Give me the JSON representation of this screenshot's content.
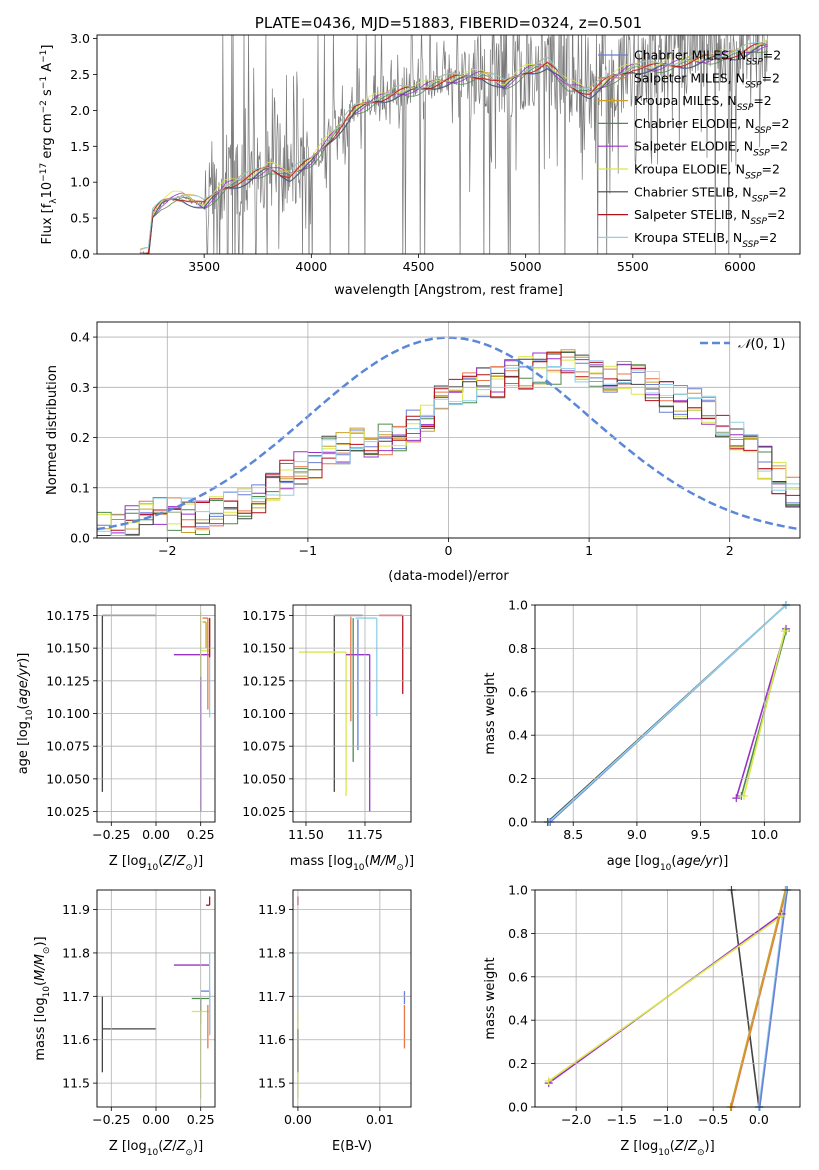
{
  "figure_title": "PLATE=0436, MJD=51883, FIBERID=0324, z=0.501",
  "palette": {
    "Chabrier MILES": "#6a7fd8",
    "Salpeter MILES": "#e8744a",
    "Kroupa MILES": "#c9a227",
    "Chabrier ELODIE": "#4f8a4f",
    "Salpeter ELODIE": "#9b30c9",
    "Kroupa ELODIE": "#d9e84a",
    "Chabrier STELIB": "#444444",
    "Salpeter STELIB": "#b3111b",
    "Kroupa STELIB": "#8fd0e8",
    "data": "#7a7a7a",
    "normal": "#5b87d9"
  },
  "chart_data": [
    {
      "id": "spectrum",
      "type": "line",
      "title": "PLATE=0436, MJD=51883, FIBERID=0324, z=0.501",
      "xlabel": "wavelength [Angstrom, rest frame]",
      "ylabel": "Flux [f_λ 10^-17 erg cm^-2 s^-1 A^-1]",
      "xlim": [
        3000,
        6280
      ],
      "ylim": [
        0,
        3.05
      ],
      "xticks": [
        3500,
        4000,
        4500,
        5000,
        5500,
        6000
      ],
      "yticks": [
        0.0,
        0.5,
        1.0,
        1.5,
        2.0,
        2.5,
        3.0
      ],
      "legend_loc": "right",
      "legend": [
        "Chabrier MILES, N_SSP=2",
        "Salpeter MILES, N_SSP=2",
        "Kroupa MILES, N_SSP=2",
        "Chabrier ELODIE, N_SSP=2",
        "Salpeter ELODIE, N_SSP=2",
        "Kroupa ELODIE, N_SSP=2",
        "Chabrier STELIB, N_SSP=2",
        "Salpeter STELIB, N_SSP=2",
        "Kroupa STELIB, N_SSP=2"
      ],
      "continuum": {
        "x": [
          3200,
          3240,
          3260,
          3300,
          3350,
          3400,
          3450,
          3500,
          3600,
          3700,
          3800,
          3900,
          4000,
          4100,
          4200,
          4300,
          4400,
          4500,
          4600,
          4700,
          4800,
          4900,
          5000,
          5100,
          5200,
          5300,
          5400,
          5500,
          5600,
          5700,
          5800,
          5900,
          6000,
          6100,
          6130
        ],
        "y": [
          0.0,
          0.0,
          0.55,
          0.7,
          0.78,
          0.8,
          0.74,
          0.68,
          0.95,
          1.05,
          1.2,
          1.1,
          1.3,
          1.65,
          2.0,
          2.15,
          2.25,
          2.3,
          2.4,
          2.45,
          2.5,
          2.35,
          2.55,
          2.65,
          2.35,
          2.25,
          2.45,
          2.6,
          2.6,
          2.65,
          2.7,
          2.75,
          2.8,
          2.9,
          2.9
        ]
      }
    },
    {
      "id": "residuals",
      "type": "histogram",
      "xlabel": "(data-model)/error",
      "ylabel": "Normed distribution",
      "xlim": [
        -2.5,
        2.5
      ],
      "ylim": [
        0,
        0.43
      ],
      "xticks": [
        -2,
        -1,
        0,
        1,
        2
      ],
      "yticks": [
        0.0,
        0.1,
        0.2,
        0.3,
        0.4
      ],
      "legend": [
        "N(0,1)"
      ],
      "legend_loc": "upper right",
      "bin_edges_start": -2.5,
      "bin_width": 0.1,
      "envelope": [
        0.02,
        0.025,
        0.03,
        0.04,
        0.05,
        0.05,
        0.045,
        0.04,
        0.05,
        0.06,
        0.07,
        0.08,
        0.1,
        0.12,
        0.14,
        0.15,
        0.17,
        0.18,
        0.19,
        0.19,
        0.2,
        0.2,
        0.22,
        0.24,
        0.27,
        0.29,
        0.3,
        0.31,
        0.31,
        0.33,
        0.33,
        0.34,
        0.34,
        0.35,
        0.34,
        0.33,
        0.32,
        0.32,
        0.31,
        0.3,
        0.28,
        0.27,
        0.27,
        0.25,
        0.22,
        0.2,
        0.18,
        0.15,
        0.12,
        0.09
      ]
    },
    {
      "id": "age-vs-Z",
      "type": "errorbar",
      "xlabel": "Z [log10(Z/Z⊙)]",
      "ylabel": "age [log10(age/yr)]",
      "xlim": [
        -0.33,
        0.33
      ],
      "ylim": [
        10.017,
        10.183
      ],
      "xticks": [
        -0.25,
        0.0,
        0.25
      ],
      "yticks": [
        10.025,
        10.05,
        10.075,
        10.1,
        10.125,
        10.15,
        10.175
      ],
      "points": [
        {
          "series": "Chabrier STELIB",
          "x": -0.3,
          "y": 10.175,
          "xerr": [
            0.0,
            0.3
          ],
          "yerr": [
            0.135,
            0.0
          ]
        },
        {
          "series": "Salpeter ELODIE",
          "x": 0.25,
          "y": 10.145,
          "xerr": [
            0.15,
            0.05
          ],
          "yerr": [
            0.12,
            0.0
          ]
        },
        {
          "series": "Kroupa ELODIE",
          "x": 0.25,
          "y": 10.148,
          "xerr": [
            0.0,
            0.05
          ],
          "yerr": [
            0.02,
            0.03
          ]
        },
        {
          "series": "Salpeter MILES",
          "x": 0.29,
          "y": 10.173,
          "xerr": [
            0.03,
            0.0
          ],
          "yerr": [
            0.07,
            0.0
          ]
        },
        {
          "series": "Kroupa STELIB",
          "x": 0.3,
          "y": 10.172,
          "xerr": [
            0.0,
            0.0
          ],
          "yerr": [
            0.075,
            0.0
          ]
        },
        {
          "series": "Salpeter STELIB",
          "x": 0.3,
          "y": 10.173,
          "xerr": [
            0.0,
            0.0
          ],
          "yerr": [
            0.03,
            0.0
          ]
        },
        {
          "series": "Kroupa MILES",
          "x": 0.28,
          "y": 10.17,
          "xerr": [
            0.02,
            0.0
          ],
          "yerr": [
            0.02,
            0.0
          ]
        }
      ]
    },
    {
      "id": "age-vs-mass",
      "type": "errorbar",
      "xlabel": "mass [log10(M/M⊙)]",
      "ylabel": "",
      "xlim": [
        11.445,
        11.945
      ],
      "ylim": [
        10.017,
        10.183
      ],
      "xticks": [
        11.5,
        11.75
      ],
      "yticks": [
        10.025,
        10.05,
        10.075,
        10.1,
        10.125,
        10.15,
        10.175
      ],
      "points": [
        {
          "series": "Chabrier STELIB",
          "x": 11.62,
          "y": 10.175,
          "xerr": [
            0.0,
            0.12
          ],
          "yerr": [
            0.135,
            0.0
          ]
        },
        {
          "series": "Kroupa ELODIE",
          "x": 11.67,
          "y": 10.147,
          "xerr": [
            0.2,
            0.0
          ],
          "yerr": [
            0.11,
            0.0
          ]
        },
        {
          "series": "Salpeter ELODIE",
          "x": 11.77,
          "y": 10.145,
          "xerr": [
            0.1,
            0.0
          ],
          "yerr": [
            0.12,
            0.0
          ]
        },
        {
          "series": "Kroupa STELIB",
          "x": 11.8,
          "y": 10.173,
          "xerr": [
            0.09,
            0.0
          ],
          "yerr": [
            0.075,
            0.0
          ]
        },
        {
          "series": "Salpeter STELIB",
          "x": 11.91,
          "y": 10.175,
          "xerr": [
            0.1,
            0.0
          ],
          "yerr": [
            0.06,
            0.0
          ]
        },
        {
          "series": "Chabrier ELODIE",
          "x": 11.7,
          "y": 10.173,
          "xerr": [
            0.0,
            0.0
          ],
          "yerr": [
            0.11,
            0.0
          ]
        },
        {
          "series": "Chabrier MILES",
          "x": 11.72,
          "y": 10.172,
          "xerr": [
            0.0,
            0.0
          ],
          "yerr": [
            0.1,
            0.0
          ]
        },
        {
          "series": "Salpeter MILES",
          "x": 11.69,
          "y": 10.174,
          "xerr": [
            0.0,
            0.0
          ],
          "yerr": [
            0.08,
            0.0
          ]
        }
      ]
    },
    {
      "id": "weight-vs-age",
      "type": "line",
      "xlabel": "age [log10(age/yr)]",
      "ylabel": "mass weight",
      "xlim": [
        8.2,
        10.28
      ],
      "ylim": [
        0,
        1.0
      ],
      "xticks": [
        8.5,
        9.0,
        9.5,
        10.0
      ],
      "yticks": [
        0.0,
        0.2,
        0.4,
        0.6,
        0.8,
        1.0
      ],
      "series": [
        {
          "series": "Chabrier STELIB",
          "x": [
            8.3,
            10.17
          ],
          "y": [
            0.0,
            1.0
          ]
        },
        {
          "series": "Chabrier MILES",
          "x": [
            8.32,
            10.17
          ],
          "y": [
            0.0,
            1.0
          ]
        },
        {
          "series": "Kroupa STELIB",
          "x": [
            8.31,
            10.17
          ],
          "y": [
            0.0,
            1.0
          ]
        },
        {
          "series": "Salpeter ELODIE",
          "x": [
            9.78,
            10.17
          ],
          "y": [
            0.11,
            0.89
          ]
        },
        {
          "series": "Chabrier ELODIE",
          "x": [
            9.82,
            10.17
          ],
          "y": [
            0.12,
            0.88
          ]
        },
        {
          "series": "Kroupa ELODIE",
          "x": [
            9.84,
            10.16
          ],
          "y": [
            0.12,
            0.88
          ]
        }
      ]
    },
    {
      "id": "mass-vs-Z",
      "type": "errorbar",
      "xlabel": "Z [log10(Z/Z⊙)]",
      "ylabel": "mass [log10(M/M⊙)]",
      "xlim": [
        -0.33,
        0.33
      ],
      "ylim": [
        11.445,
        11.945
      ],
      "xticks": [
        -0.25,
        0.0,
        0.25
      ],
      "yticks": [
        11.5,
        11.6,
        11.7,
        11.8,
        11.9
      ],
      "points": [
        {
          "series": "Chabrier STELIB",
          "x": -0.3,
          "y": 11.625,
          "xerr": [
            0.0,
            0.3
          ],
          "yerr": [
            0.1,
            0.075
          ]
        },
        {
          "series": "Salpeter ELODIE",
          "x": 0.25,
          "y": 11.772,
          "xerr": [
            0.15,
            0.05
          ],
          "yerr": [
            0.0,
            0.0
          ]
        },
        {
          "series": "Chabrier ELODIE",
          "x": 0.25,
          "y": 11.695,
          "xerr": [
            0.05,
            0.05
          ],
          "yerr": [
            0.06,
            0.0
          ]
        },
        {
          "series": "Kroupa ELODIE",
          "x": 0.25,
          "y": 11.665,
          "xerr": [
            0.05,
            0.05
          ],
          "yerr": [
            0.2,
            0.0
          ]
        },
        {
          "series": "Chabrier MILES",
          "x": 0.3,
          "y": 11.712,
          "xerr": [
            0.05,
            0.0
          ],
          "yerr": [
            0.1,
            0.0
          ]
        },
        {
          "series": "Kroupa STELIB",
          "x": 0.3,
          "y": 11.8,
          "xerr": [
            0.05,
            0.0
          ],
          "yerr": [
            0.19,
            0.0
          ]
        },
        {
          "series": "Salpeter STELIB",
          "x": 0.3,
          "y": 11.91,
          "xerr": [
            0.02,
            0.0
          ],
          "yerr": [
            0.0,
            0.02
          ]
        },
        {
          "series": "Salpeter MILES",
          "x": 0.29,
          "y": 11.68,
          "xerr": [
            0.0,
            0.0
          ],
          "yerr": [
            0.1,
            0.0
          ]
        }
      ]
    },
    {
      "id": "mass-vs-EBV",
      "type": "errorbar",
      "xlabel": "E(B-V)",
      "ylabel": "",
      "xlim": [
        -0.0006,
        0.0138
      ],
      "ylim": [
        11.445,
        11.945
      ],
      "xticks": [
        0.0,
        0.01
      ],
      "yticks": [
        11.5,
        11.6,
        11.7,
        11.8,
        11.9
      ],
      "points": [
        {
          "series": "Salpeter STELIB",
          "x": 0.0,
          "y": 11.91,
          "xerr": [
            0.0,
            0.0
          ],
          "yerr": [
            0.0,
            0.02
          ]
        },
        {
          "series": "Kroupa STELIB",
          "x": 0.0,
          "y": 11.8,
          "xerr": [
            0.0,
            0.0
          ],
          "yerr": [
            0.16,
            0.0
          ]
        },
        {
          "series": "Kroupa ELODIE",
          "x": 0.0,
          "y": 11.665,
          "xerr": [
            0.0,
            0.0
          ],
          "yerr": [
            0.2,
            0.0
          ]
        },
        {
          "series": "Chabrier STELIB",
          "x": 0.0,
          "y": 11.625,
          "xerr": [
            0.0,
            0.0
          ],
          "yerr": [
            0.1,
            0.0
          ]
        },
        {
          "series": "Chabrier MILES",
          "x": 0.013,
          "y": 11.712,
          "xerr": [
            0.0,
            0.0
          ],
          "yerr": [
            0.03,
            0.0
          ]
        },
        {
          "series": "Salpeter MILES",
          "x": 0.013,
          "y": 11.68,
          "xerr": [
            0.0,
            0.0
          ],
          "yerr": [
            0.1,
            0.0
          ]
        }
      ]
    },
    {
      "id": "weight-vs-Z",
      "type": "line",
      "xlabel": "Z [log10(Z/Z⊙)]",
      "ylabel": "mass weight",
      "xlim": [
        -2.45,
        0.45
      ],
      "ylim": [
        0,
        1.0
      ],
      "xticks": [
        -2.0,
        -1.5,
        -1.0,
        -0.5,
        0.0
      ],
      "yticks": [
        0.0,
        0.2,
        0.4,
        0.6,
        0.8,
        1.0
      ],
      "series": [
        {
          "series": "Chabrier STELIB",
          "x": [
            -0.3,
            0.0
          ],
          "y": [
            1.0,
            0.0
          ]
        },
        {
          "series": "Salpeter ELODIE",
          "x": [
            -2.3,
            0.25
          ],
          "y": [
            0.11,
            0.89
          ]
        },
        {
          "series": "Kroupa ELODIE",
          "x": [
            -2.3,
            0.25
          ],
          "y": [
            0.12,
            0.88
          ]
        },
        {
          "series": "Salpeter MILES",
          "x": [
            -0.3,
            0.3
          ],
          "y": [
            0.0,
            1.0
          ]
        },
        {
          "series": "Kroupa MILES",
          "x": [
            -0.31,
            0.29
          ],
          "y": [
            0.0,
            1.0
          ]
        },
        {
          "series": "Kroupa STELIB",
          "x": [
            0.0,
            0.3
          ],
          "y": [
            0.0,
            1.0
          ]
        },
        {
          "series": "Chabrier MILES",
          "x": [
            0.01,
            0.31
          ],
          "y": [
            0.0,
            1.0
          ]
        }
      ]
    }
  ]
}
